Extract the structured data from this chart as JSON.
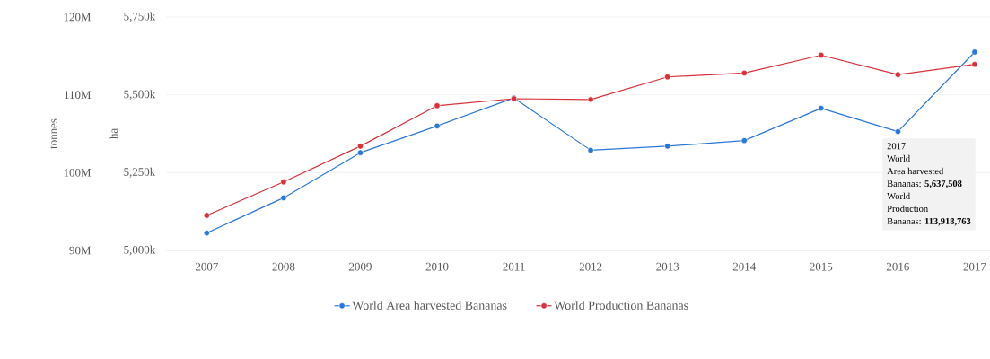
{
  "chart_data": {
    "type": "line",
    "ylabel": "tonnes",
    "y2label": "ha",
    "categories": [
      "2007",
      "2008",
      "2009",
      "2010",
      "2011",
      "2012",
      "2013",
      "2014",
      "2015",
      "2016",
      "2017"
    ],
    "series": [
      {
        "name": "World Area harvested Bananas",
        "color": "#2a78d6",
        "axis": "y2",
        "values": [
          5056000,
          5169000,
          5314000,
          5400000,
          5490000,
          5322000,
          5335000,
          5353000,
          5457000,
          5382000,
          5637508
        ]
      },
      {
        "name": "World Production Bananas",
        "color": "#d7313a",
        "values": [
          94500000,
          98800000,
          103400000,
          108600000,
          109500000,
          109400000,
          112300000,
          112800000,
          115100000,
          112600000,
          113918763
        ]
      }
    ],
    "ylim": [
      90000000,
      120000000
    ],
    "yticks": [
      {
        "value": 90000000,
        "label": "90M"
      },
      {
        "value": 100000000,
        "label": "100M"
      },
      {
        "value": 110000000,
        "label": "110M"
      },
      {
        "value": 120000000,
        "label": "120M"
      }
    ],
    "y2lim": [
      5000000,
      5750000
    ],
    "y2ticks": [
      {
        "value": 5000000,
        "label": "5,000k"
      },
      {
        "value": 5250000,
        "label": "5,250k"
      },
      {
        "value": 5500000,
        "label": "5,500k"
      },
      {
        "value": 5750000,
        "label": "5,750k"
      }
    ],
    "grid": "y",
    "legend": "bottom",
    "marker": "circle",
    "line_style": "solid",
    "annotations": [
      "2017",
      "World",
      "Area harvested",
      "Bananas: **5,637,508**",
      "World",
      "Production",
      "Bananas: **113,918,763**"
    ]
  }
}
